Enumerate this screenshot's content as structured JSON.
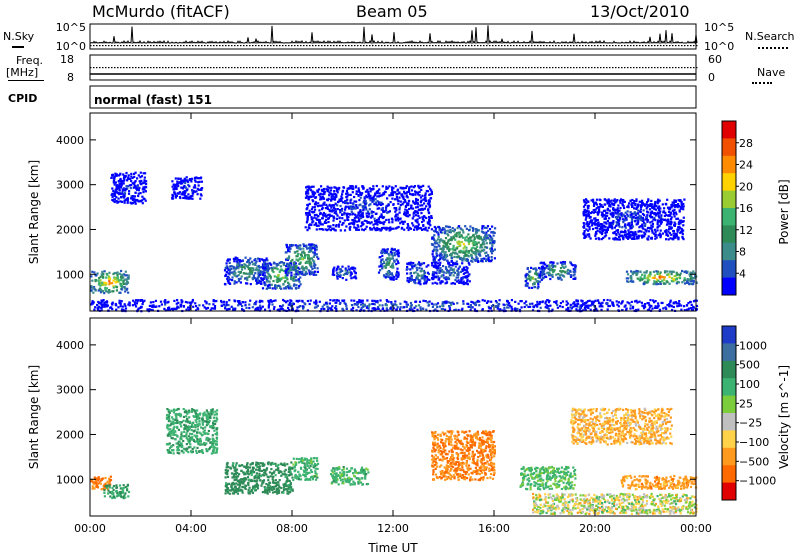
{
  "header": {
    "station": "McMurdo (fitACF)",
    "beam": "Beam 05",
    "date": "13/Oct/2010"
  },
  "top_panels": {
    "nsky_label": "N.Sky",
    "nsearch_label": "N.Search",
    "nsky_ticks": [
      "10^5",
      "10^0"
    ],
    "nsearch_ticks": [
      "10^5",
      "10^0"
    ],
    "freq_label": "Freq.",
    "freq_unit": "[MHz]",
    "freq_ticks": [
      "18",
      "8"
    ],
    "nave_label": "Nave",
    "nave_ticks": [
      "60",
      "0"
    ],
    "cpid_label": "CPID",
    "cpid_value": "normal (fast) 151"
  },
  "chart_data": [
    {
      "type": "heatmap",
      "name": "power",
      "ylabel": "Slant Range [km]",
      "xlabel": "",
      "ylim": [
        180,
        4600
      ],
      "yticks": [
        1000,
        2000,
        3000,
        4000
      ],
      "xticks": [
        "00:00",
        "04:00",
        "08:00",
        "12:00",
        "16:00",
        "20:00",
        "00:00"
      ],
      "colorbar": {
        "label": "Power [dB]",
        "ticks": [
          "28",
          "24",
          "20",
          "16",
          "12",
          "8",
          "4"
        ],
        "colors": [
          "#e10000",
          "#f05000",
          "#ff8c00",
          "#ffd200",
          "#9acd32",
          "#3cb371",
          "#2e8b57",
          "#3c8c8c",
          "#2050c0",
          "#0000ff"
        ]
      },
      "scatter_regions": [
        {
          "t_start": 0.0,
          "t_end": 1.5,
          "r_min": 600,
          "r_max": 1100,
          "peak_db": 26
        },
        {
          "t_start": 5.3,
          "t_end": 7.0,
          "r_min": 800,
          "r_max": 1400,
          "peak_db": 14
        },
        {
          "t_start": 6.8,
          "t_end": 8.3,
          "r_min": 700,
          "r_max": 1300,
          "peak_db": 20
        },
        {
          "t_start": 7.7,
          "t_end": 9.0,
          "r_min": 1000,
          "r_max": 1700,
          "peak_db": 18
        },
        {
          "t_start": 9.5,
          "t_end": 10.5,
          "r_min": 900,
          "r_max": 1200,
          "peak_db": 10
        },
        {
          "t_start": 11.4,
          "t_end": 12.2,
          "r_min": 900,
          "r_max": 1600,
          "peak_db": 14
        },
        {
          "t_start": 12.5,
          "t_end": 13.4,
          "r_min": 800,
          "r_max": 1300,
          "peak_db": 12
        },
        {
          "t_start": 13.5,
          "t_end": 16.0,
          "r_min": 1300,
          "r_max": 2100,
          "peak_db": 20
        },
        {
          "t_start": 13.5,
          "t_end": 15.0,
          "r_min": 800,
          "r_max": 1300,
          "peak_db": 10
        },
        {
          "t_start": 17.2,
          "t_end": 17.8,
          "r_min": 700,
          "r_max": 1200,
          "peak_db": 18
        },
        {
          "t_start": 17.8,
          "t_end": 19.2,
          "r_min": 900,
          "r_max": 1300,
          "peak_db": 16
        },
        {
          "t_start": 21.2,
          "t_end": 24.0,
          "r_min": 800,
          "r_max": 1100,
          "peak_db": 26
        },
        {
          "t_start": 0.8,
          "t_end": 2.2,
          "r_min": 2600,
          "r_max": 3300,
          "peak_db": 6
        },
        {
          "t_start": 3.2,
          "t_end": 4.4,
          "r_min": 2700,
          "r_max": 3200,
          "peak_db": 6
        },
        {
          "t_start": 8.5,
          "t_end": 13.5,
          "r_min": 2000,
          "r_max": 3000,
          "peak_db": 6
        },
        {
          "t_start": 19.5,
          "t_end": 23.5,
          "r_min": 1800,
          "r_max": 2700,
          "peak_db": 6
        },
        {
          "t_start": 0.0,
          "t_end": 24.0,
          "r_min": 200,
          "r_max": 450,
          "peak_db": 8
        }
      ]
    },
    {
      "type": "heatmap",
      "name": "velocity",
      "ylabel": "Slant Range [km]",
      "xlabel": "Time UT",
      "ylim": [
        180,
        4600
      ],
      "yticks": [
        1000,
        2000,
        3000,
        4000
      ],
      "xticks": [
        "00:00",
        "04:00",
        "08:00",
        "12:00",
        "16:00",
        "20:00",
        "00:00"
      ],
      "colorbar": {
        "label": "Velocity [m s^-1]",
        "ticks": [
          "1000",
          "500",
          "100",
          "25",
          "−25",
          "−100",
          "−500",
          "−1000"
        ],
        "colors": [
          "#1e3cc8",
          "#3c6ea0",
          "#2e8b57",
          "#3cb371",
          "#7ccd3c",
          "#c0c0c0",
          "#ffd24a",
          "#ff9a1e",
          "#ff6a00",
          "#e10000"
        ]
      },
      "scatter_regions": [
        {
          "t_start": 0.0,
          "t_end": 0.8,
          "r_min": 800,
          "r_max": 1100,
          "velocity": -300
        },
        {
          "t_start": 0.5,
          "t_end": 1.5,
          "r_min": 600,
          "r_max": 900,
          "velocity": 300
        },
        {
          "t_start": 5.3,
          "t_end": 8.0,
          "r_min": 700,
          "r_max": 1400,
          "velocity": 400
        },
        {
          "t_start": 8.0,
          "t_end": 9.0,
          "r_min": 1000,
          "r_max": 1500,
          "velocity": 200
        },
        {
          "t_start": 9.5,
          "t_end": 11.0,
          "r_min": 900,
          "r_max": 1300,
          "velocity": 200
        },
        {
          "t_start": 13.5,
          "t_end": 16.0,
          "r_min": 1000,
          "r_max": 2100,
          "velocity": -300
        },
        {
          "t_start": 17.0,
          "t_end": 19.2,
          "r_min": 800,
          "r_max": 1300,
          "velocity": 150
        },
        {
          "t_start": 21.0,
          "t_end": 24.0,
          "r_min": 800,
          "r_max": 1100,
          "velocity": -200
        },
        {
          "t_start": 17.5,
          "t_end": 24.0,
          "r_min": 250,
          "r_max": 700,
          "velocity": 0
        },
        {
          "t_start": 3.0,
          "t_end": 5.0,
          "r_min": 1600,
          "r_max": 2600,
          "velocity": 250
        },
        {
          "t_start": 19.0,
          "t_end": 23.0,
          "r_min": 1800,
          "r_max": 2600,
          "velocity": -120
        }
      ]
    }
  ]
}
